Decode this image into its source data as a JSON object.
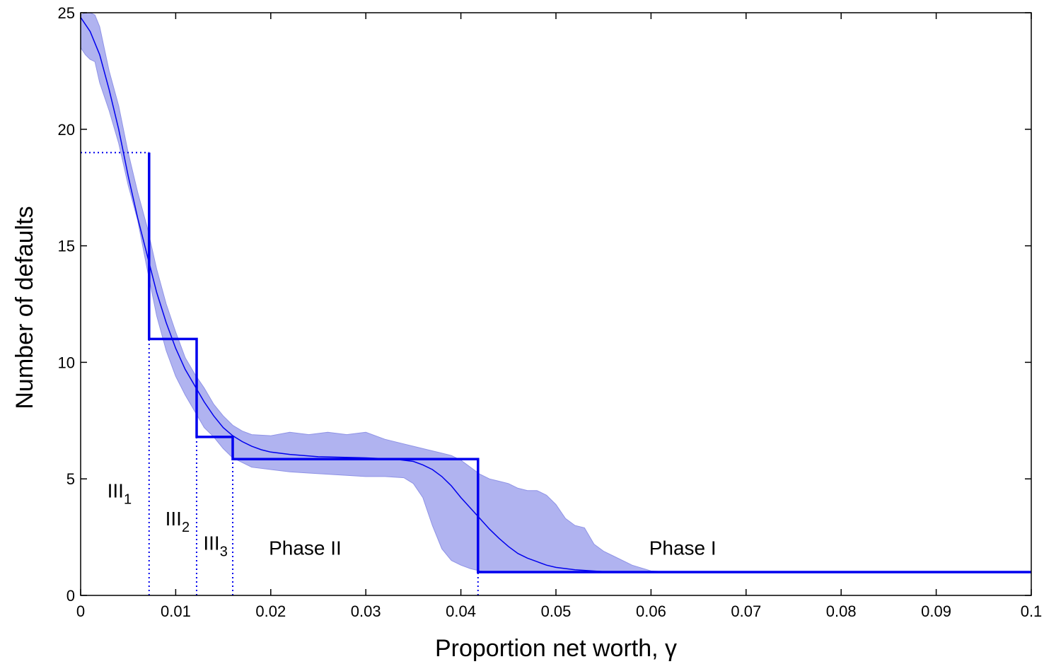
{
  "chart_data": {
    "type": "line",
    "title": "",
    "xlabel": "Proportion net worth, γ",
    "ylabel": "Number of defaults",
    "xlim": [
      0,
      0.1
    ],
    "ylim": [
      0,
      25
    ],
    "grid": false,
    "xticks": [
      {
        "value": 0,
        "label": "0"
      },
      {
        "value": 0.01,
        "label": "0.01"
      },
      {
        "value": 0.02,
        "label": "0.02"
      },
      {
        "value": 0.03,
        "label": "0.03"
      },
      {
        "value": 0.04,
        "label": "0.04"
      },
      {
        "value": 0.05,
        "label": "0.05"
      },
      {
        "value": 0.06,
        "label": "0.06"
      },
      {
        "value": 0.07,
        "label": "0.07"
      },
      {
        "value": 0.08,
        "label": "0.08"
      },
      {
        "value": 0.09,
        "label": "0.09"
      },
      {
        "value": 0.1,
        "label": "0.1"
      }
    ],
    "yticks": [
      {
        "value": 0,
        "label": "0"
      },
      {
        "value": 5,
        "label": "5"
      },
      {
        "value": 10,
        "label": "10"
      },
      {
        "value": 15,
        "label": "15"
      },
      {
        "value": 20,
        "label": "20"
      },
      {
        "value": 25,
        "label": "25"
      }
    ],
    "colors": {
      "band": "#b0b3f0",
      "band_edge": "#8f93e6",
      "line": "#0000ee"
    },
    "series": [
      {
        "kind": "band",
        "x": [
          0,
          0.0005,
          0.001,
          0.0015,
          0.002,
          0.003,
          0.004,
          0.005,
          0.006,
          0.007,
          0.008,
          0.009,
          0.01,
          0.011,
          0.012,
          0.013,
          0.014,
          0.015,
          0.016,
          0.017,
          0.018,
          0.02,
          0.022,
          0.024,
          0.026,
          0.028,
          0.03,
          0.032,
          0.034,
          0.035,
          0.036,
          0.037,
          0.038,
          0.039,
          0.04,
          0.041,
          0.042,
          0.043,
          0.044,
          0.045,
          0.046,
          0.047,
          0.048,
          0.049,
          0.05,
          0.051,
          0.052,
          0.053,
          0.054,
          0.055,
          0.056,
          0.058,
          0.06,
          0.062,
          0.065,
          0.07,
          0.08,
          0.09,
          0.1
        ],
        "upper": [
          24.9,
          25.0,
          25.0,
          24.9,
          24.4,
          22.5,
          21.0,
          19.0,
          17.3,
          15.8,
          14.0,
          12.5,
          11.3,
          10.2,
          9.5,
          8.9,
          8.2,
          7.7,
          7.3,
          7.05,
          6.9,
          6.85,
          7.0,
          6.9,
          7.0,
          6.9,
          7.0,
          6.7,
          6.5,
          6.4,
          6.3,
          6.2,
          6.1,
          6.0,
          5.8,
          5.5,
          5.2,
          5.0,
          4.9,
          4.8,
          4.6,
          4.5,
          4.5,
          4.3,
          3.9,
          3.3,
          3.0,
          2.9,
          2.2,
          1.9,
          1.7,
          1.3,
          1.05,
          1.0,
          1.0,
          1.0,
          1.0,
          1.0,
          1.0
        ],
        "lower": [
          23.5,
          23.2,
          23.0,
          22.9,
          22.0,
          20.8,
          19.4,
          17.6,
          16.1,
          14.0,
          12.0,
          10.5,
          9.4,
          8.6,
          7.9,
          7.2,
          6.8,
          6.3,
          5.9,
          5.7,
          5.5,
          5.4,
          5.3,
          5.25,
          5.2,
          5.15,
          5.1,
          5.1,
          5.05,
          4.8,
          4.2,
          3.0,
          2.0,
          1.5,
          1.3,
          1.15,
          1.05,
          1.0,
          1.0,
          1.0,
          1.0,
          1.0,
          1.0,
          1.0,
          1.0,
          1.0,
          1.0,
          1.0,
          1.0,
          1.0,
          1.0,
          1.0,
          1.0,
          1.0,
          1.0,
          1.0,
          1.0,
          1.0,
          1.0
        ]
      },
      {
        "kind": "mean",
        "x": [
          0,
          0.001,
          0.002,
          0.003,
          0.004,
          0.005,
          0.006,
          0.007,
          0.008,
          0.009,
          0.01,
          0.011,
          0.012,
          0.013,
          0.014,
          0.015,
          0.016,
          0.017,
          0.018,
          0.019,
          0.02,
          0.022,
          0.025,
          0.03,
          0.033,
          0.035,
          0.036,
          0.037,
          0.038,
          0.039,
          0.04,
          0.041,
          0.042,
          0.043,
          0.044,
          0.045,
          0.046,
          0.047,
          0.048,
          0.049,
          0.05,
          0.052,
          0.055,
          0.06,
          0.1
        ],
        "y": [
          24.8,
          24.2,
          23.2,
          21.7,
          20.0,
          18.0,
          16.2,
          14.6,
          13.0,
          11.7,
          10.6,
          9.7,
          9.0,
          8.3,
          7.7,
          7.2,
          6.85,
          6.6,
          6.4,
          6.25,
          6.15,
          6.05,
          5.95,
          5.9,
          5.85,
          5.75,
          5.6,
          5.4,
          5.1,
          4.7,
          4.2,
          3.75,
          3.3,
          2.85,
          2.45,
          2.1,
          1.8,
          1.6,
          1.45,
          1.3,
          1.2,
          1.1,
          1.02,
          1.0,
          1.0
        ]
      },
      {
        "kind": "step",
        "x": [
          0.0072,
          0.0072,
          0.0122,
          0.0122,
          0.016,
          0.016,
          0.0418,
          0.0418,
          0.1
        ],
        "y": [
          19,
          11,
          11,
          6.8,
          6.8,
          5.85,
          5.85,
          1.0,
          1.0
        ]
      }
    ],
    "reference_lines": [
      {
        "orientation": "horizontal",
        "x0": 0,
        "x1": 0.0072,
        "y": 19
      },
      {
        "orientation": "vertical",
        "x": 0.0072,
        "y0": 0,
        "y1": 11
      },
      {
        "orientation": "vertical",
        "x": 0.0122,
        "y0": 0,
        "y1": 6.8
      },
      {
        "orientation": "vertical",
        "x": 0.016,
        "y0": 0,
        "y1": 5.85
      },
      {
        "orientation": "vertical",
        "x": 0.0418,
        "y0": 0,
        "y1": 1.0
      }
    ],
    "annotations": [
      {
        "text": "III",
        "sub": "1",
        "x": 0.0028,
        "y": 4.2
      },
      {
        "text": "III",
        "sub": "2",
        "x": 0.0089,
        "y": 3.0
      },
      {
        "text": "III",
        "sub": "3",
        "x": 0.0129,
        "y": 1.95
      },
      {
        "text": "Phase II",
        "x": 0.0198,
        "y": 1.75
      },
      {
        "text": "Phase I",
        "x": 0.0598,
        "y": 1.75
      }
    ]
  }
}
